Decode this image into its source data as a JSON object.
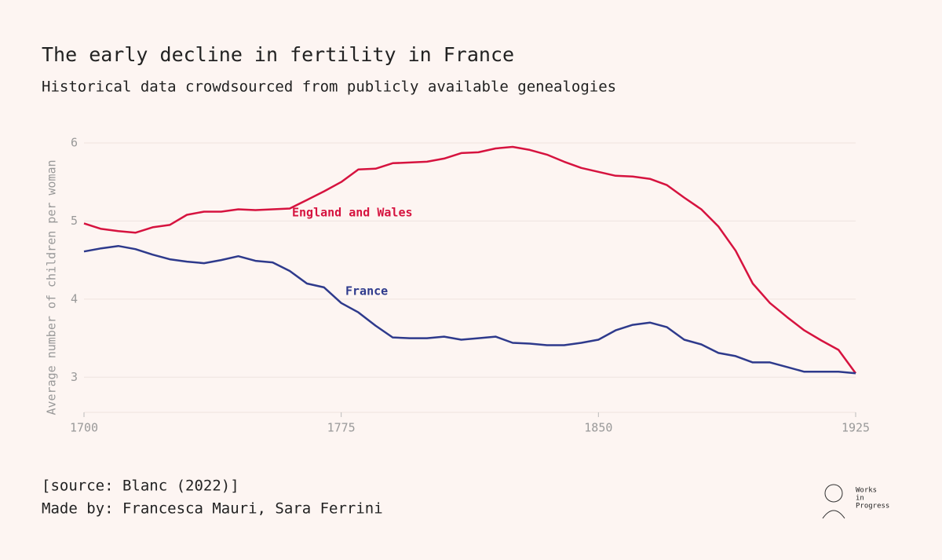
{
  "chart_data": {
    "type": "line",
    "title": "The early decline in fertility in France",
    "subtitle": "Historical data crowdsourced from publicly available genealogies",
    "y_label": "Average number of children per woman",
    "source": "[source: Blanc (2022)]",
    "credit": "Made by: Francesca Mauri, Sara Ferrini",
    "logo_text": [
      "Works",
      "in",
      "Progress"
    ],
    "x": [
      1700,
      1705,
      1710,
      1715,
      1720,
      1725,
      1730,
      1735,
      1740,
      1745,
      1750,
      1755,
      1760,
      1765,
      1770,
      1775,
      1780,
      1785,
      1790,
      1795,
      1800,
      1805,
      1810,
      1815,
      1820,
      1825,
      1830,
      1835,
      1840,
      1845,
      1850,
      1855,
      1860,
      1865,
      1870,
      1875,
      1880,
      1885,
      1890,
      1895,
      1900,
      1905,
      1910,
      1915,
      1920,
      1925
    ],
    "series": [
      {
        "name": "England and Wales",
        "color": "#d6133f",
        "values": [
          4.97,
          4.9,
          4.87,
          4.85,
          4.92,
          4.95,
          5.08,
          5.12,
          5.12,
          5.15,
          5.14,
          5.15,
          5.16,
          5.27,
          5.38,
          5.5,
          5.66,
          5.67,
          5.74,
          5.75,
          5.76,
          5.8,
          5.87,
          5.88,
          5.93,
          5.95,
          5.91,
          5.85,
          5.76,
          5.68,
          5.63,
          5.58,
          5.57,
          5.54,
          5.46,
          5.3,
          5.15,
          4.93,
          4.62,
          4.2,
          3.95,
          3.77,
          3.6,
          3.47,
          3.35,
          3.05
        ]
      },
      {
        "name": "France",
        "color": "#2e3a8c",
        "values": [
          4.61,
          4.65,
          4.68,
          4.64,
          4.57,
          4.51,
          4.48,
          4.46,
          4.5,
          4.55,
          4.49,
          4.47,
          4.36,
          4.2,
          4.15,
          3.95,
          3.83,
          3.66,
          3.51,
          3.5,
          3.5,
          3.52,
          3.48,
          3.5,
          3.52,
          3.44,
          3.43,
          3.41,
          3.41,
          3.44,
          3.48,
          3.6,
          3.67,
          3.7,
          3.64,
          3.48,
          3.42,
          3.31,
          3.27,
          3.19,
          3.19,
          3.13,
          3.07,
          3.07,
          3.07,
          3.05
        ]
      }
    ],
    "xlim": [
      1700,
      1925
    ],
    "xticks": [
      1700,
      1775,
      1850,
      1925
    ],
    "ylim": [
      2.55,
      6
    ],
    "yticks": [
      3,
      4,
      5,
      6
    ],
    "grid": true
  }
}
